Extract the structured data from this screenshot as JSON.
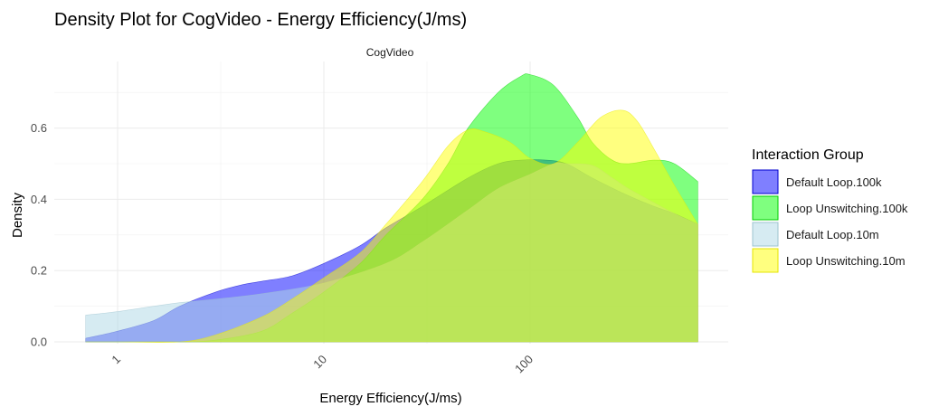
{
  "chart_data": {
    "type": "area",
    "title": "Density Plot for CogVideo - Energy Efficiency(J/ms)",
    "facet_label": "CogVideo",
    "xlabel": "Energy Efficiency(J/ms)",
    "ylabel": "Density",
    "x_scale": "log10",
    "xlim": [
      0.5,
      800
    ],
    "ylim": [
      0,
      0.75
    ],
    "x_ticks": [
      1,
      10,
      100
    ],
    "x_tick_labels": [
      "1",
      "10",
      "100"
    ],
    "y_ticks": [
      0,
      0.2,
      0.4,
      0.6
    ],
    "y_tick_labels": [
      "0.0",
      "0.2",
      "0.4",
      "0.6"
    ],
    "grid": true,
    "legend": {
      "title": "Interaction Group",
      "position": "right"
    },
    "series": [
      {
        "name": "Default Loop.100k",
        "fill": "#0000ff",
        "stroke": "#0000cc",
        "points": [
          [
            0.7,
            0.01
          ],
          [
            1,
            0.03
          ],
          [
            1.5,
            0.06
          ],
          [
            2,
            0.1
          ],
          [
            3,
            0.14
          ],
          [
            4,
            0.16
          ],
          [
            5,
            0.17
          ],
          [
            7,
            0.185
          ],
          [
            10,
            0.22
          ],
          [
            15,
            0.27
          ],
          [
            20,
            0.32
          ],
          [
            30,
            0.38
          ],
          [
            50,
            0.46
          ],
          [
            70,
            0.5
          ],
          [
            90,
            0.51
          ],
          [
            120,
            0.51
          ],
          [
            150,
            0.5
          ],
          [
            200,
            0.46
          ],
          [
            300,
            0.41
          ],
          [
            400,
            0.38
          ],
          [
            500,
            0.36
          ],
          [
            650,
            0.33
          ]
        ]
      },
      {
        "name": "Loop Unswitching.100k",
        "fill": "#00ff00",
        "stroke": "#00cc00",
        "points": [
          [
            0.7,
            0.0
          ],
          [
            1,
            0.0
          ],
          [
            2,
            0.0
          ],
          [
            3,
            0.005
          ],
          [
            5,
            0.03
          ],
          [
            7,
            0.08
          ],
          [
            10,
            0.14
          ],
          [
            15,
            0.22
          ],
          [
            20,
            0.3
          ],
          [
            30,
            0.4
          ],
          [
            40,
            0.5
          ],
          [
            50,
            0.6
          ],
          [
            70,
            0.7
          ],
          [
            90,
            0.745
          ],
          [
            100,
            0.75
          ],
          [
            130,
            0.72
          ],
          [
            170,
            0.63
          ],
          [
            200,
            0.56
          ],
          [
            250,
            0.51
          ],
          [
            300,
            0.5
          ],
          [
            400,
            0.51
          ],
          [
            500,
            0.5
          ],
          [
            650,
            0.45
          ]
        ]
      },
      {
        "name": "Default Loop.10m",
        "fill": "#add8e6",
        "stroke": "#9cc3cf",
        "points": [
          [
            0.7,
            0.075
          ],
          [
            1,
            0.085
          ],
          [
            1.5,
            0.1
          ],
          [
            2,
            0.11
          ],
          [
            3,
            0.12
          ],
          [
            5,
            0.135
          ],
          [
            10,
            0.165
          ],
          [
            20,
            0.22
          ],
          [
            30,
            0.28
          ],
          [
            50,
            0.37
          ],
          [
            70,
            0.43
          ],
          [
            100,
            0.47
          ],
          [
            130,
            0.5
          ],
          [
            150,
            0.5
          ],
          [
            200,
            0.495
          ],
          [
            250,
            0.46
          ],
          [
            300,
            0.43
          ],
          [
            400,
            0.39
          ],
          [
            500,
            0.36
          ],
          [
            650,
            0.33
          ]
        ]
      },
      {
        "name": "Loop Unswitching.10m",
        "fill": "#ffff00",
        "stroke": "#e6e600",
        "points": [
          [
            0.7,
            0.0
          ],
          [
            1,
            0.0
          ],
          [
            2,
            0.0
          ],
          [
            3,
            0.02
          ],
          [
            5,
            0.07
          ],
          [
            7,
            0.12
          ],
          [
            10,
            0.18
          ],
          [
            15,
            0.25
          ],
          [
            20,
            0.33
          ],
          [
            30,
            0.45
          ],
          [
            40,
            0.55
          ],
          [
            50,
            0.595
          ],
          [
            60,
            0.59
          ],
          [
            80,
            0.56
          ],
          [
            100,
            0.515
          ],
          [
            130,
            0.5
          ],
          [
            170,
            0.56
          ],
          [
            220,
            0.63
          ],
          [
            280,
            0.65
          ],
          [
            330,
            0.62
          ],
          [
            400,
            0.54
          ],
          [
            500,
            0.44
          ],
          [
            650,
            0.33
          ]
        ]
      }
    ]
  }
}
